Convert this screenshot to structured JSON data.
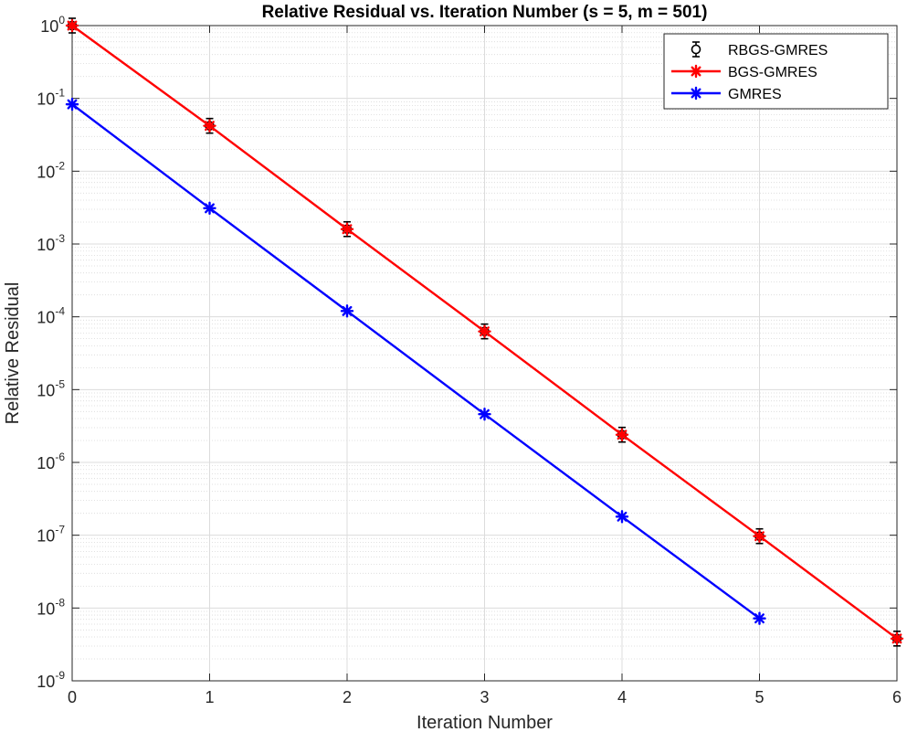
{
  "chart_data": {
    "type": "line",
    "title": "Relative Residual vs. Iteration Number (s = 5, m = 501)",
    "xlabel": "Iteration Number",
    "ylabel": "Relative Residual",
    "xlim": [
      0,
      6
    ],
    "ylim": [
      1e-09,
      1
    ],
    "yscale": "log",
    "grid": true,
    "legend_position": "top-right",
    "x_ticks": [
      "0",
      "1",
      "2",
      "3",
      "4",
      "5",
      "6"
    ],
    "y_ticks": [
      {
        "base": "10",
        "exp": "0",
        "value": 1
      },
      {
        "base": "10",
        "exp": "-1",
        "value": 0.1
      },
      {
        "base": "10",
        "exp": "-2",
        "value": 0.01
      },
      {
        "base": "10",
        "exp": "-3",
        "value": 0.001
      },
      {
        "base": "10",
        "exp": "-4",
        "value": 0.0001
      },
      {
        "base": "10",
        "exp": "-5",
        "value": 1e-05
      },
      {
        "base": "10",
        "exp": "-6",
        "value": 1e-06
      },
      {
        "base": "10",
        "exp": "-7",
        "value": 1e-07
      },
      {
        "base": "10",
        "exp": "-8",
        "value": 1e-08
      },
      {
        "base": "10",
        "exp": "-9",
        "value": 1e-09
      }
    ],
    "series": [
      {
        "name": "RBGS-GMRES",
        "color": "#000000",
        "marker": "circle-errorbar",
        "x": [
          0,
          1,
          2,
          3,
          4,
          5,
          6
        ],
        "y": [
          1.0,
          0.042,
          0.0016,
          6.3e-05,
          2.4e-06,
          9.7e-08,
          3.8e-09
        ]
      },
      {
        "name": "BGS-GMRES",
        "color": "#ff0000",
        "marker": "asterisk",
        "x": [
          0,
          1,
          2,
          3,
          4,
          5,
          6
        ],
        "y": [
          1.0,
          0.042,
          0.0016,
          6.3e-05,
          2.4e-06,
          9.7e-08,
          3.8e-09
        ]
      },
      {
        "name": "GMRES",
        "color": "#0000ff",
        "marker": "asterisk",
        "x": [
          0,
          1,
          2,
          3,
          4,
          5
        ],
        "y": [
          0.083,
          0.0031,
          0.00012,
          4.6e-06,
          1.8e-07,
          7.2e-09
        ]
      }
    ]
  }
}
